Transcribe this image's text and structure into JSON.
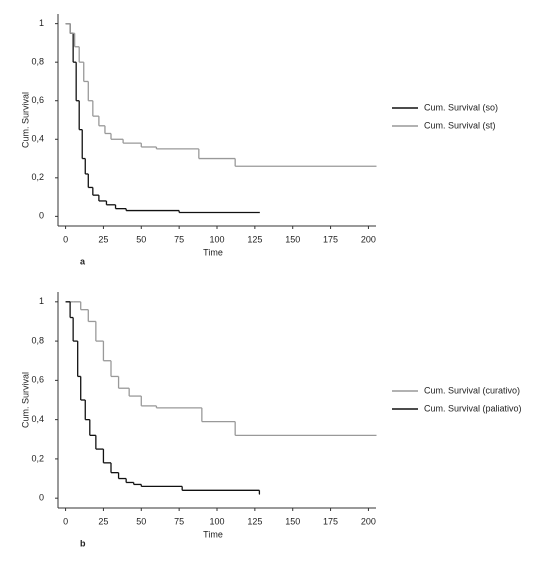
{
  "chart_data": [
    {
      "type": "line",
      "step": true,
      "panel_label": "a",
      "xlabel": "Time",
      "ylabel": "Cum. Survival",
      "xlim": [
        -5,
        205
      ],
      "xticks": [
        0,
        25,
        50,
        75,
        100,
        125,
        150,
        175,
        200
      ],
      "ylim": [
        -0.05,
        1.05
      ],
      "yticks": [
        0,
        {
          "value": 0.2,
          "label": "0,2"
        },
        {
          "value": 0.4,
          "label": "0,4"
        },
        {
          "value": 0.6,
          "label": "0,6"
        },
        {
          "value": 0.8,
          "label": "0,8"
        },
        1
      ],
      "series": [
        {
          "name": "Cum. Survival (so)",
          "color": "#111111",
          "x": [
            0,
            3,
            5,
            7,
            9,
            11,
            13,
            15,
            18,
            22,
            27,
            33,
            40,
            75,
            128
          ],
          "values": [
            1,
            0.95,
            0.8,
            0.6,
            0.45,
            0.3,
            0.22,
            0.15,
            0.11,
            0.08,
            0.06,
            0.04,
            0.03,
            0.02,
            0.02
          ]
        },
        {
          "name": "Cum. Survival (st)",
          "color": "#999999",
          "x": [
            0,
            3,
            6,
            9,
            12,
            15,
            18,
            22,
            26,
            30,
            38,
            50,
            60,
            88,
            112,
            205
          ],
          "values": [
            1,
            0.95,
            0.88,
            0.8,
            0.7,
            0.6,
            0.52,
            0.47,
            0.43,
            0.4,
            0.38,
            0.36,
            0.35,
            0.3,
            0.26,
            0.26
          ]
        }
      ]
    },
    {
      "type": "line",
      "step": true,
      "panel_label": "b",
      "xlabel": "Time",
      "ylabel": "Cum. Survival",
      "xlim": [
        -5,
        205
      ],
      "xticks": [
        0,
        25,
        50,
        75,
        100,
        125,
        150,
        175,
        200
      ],
      "ylim": [
        -0.05,
        1.05
      ],
      "yticks": [
        0,
        {
          "value": 0.2,
          "label": "0,2"
        },
        {
          "value": 0.4,
          "label": "0,4"
        },
        {
          "value": 0.6,
          "label": "0,6"
        },
        {
          "value": 0.8,
          "label": "0,8"
        },
        1
      ],
      "series": [
        {
          "name": "Cum. Survival (curativo)",
          "color": "#999999",
          "x": [
            0,
            5,
            10,
            15,
            20,
            25,
            30,
            35,
            42,
            50,
            60,
            90,
            112,
            205
          ],
          "values": [
            1,
            1,
            0.96,
            0.9,
            0.8,
            0.7,
            0.62,
            0.56,
            0.52,
            0.47,
            0.46,
            0.39,
            0.32,
            0.32
          ]
        },
        {
          "name": "Cum. Survival (paliativo)",
          "color": "#111111",
          "x": [
            0,
            3,
            5,
            8,
            10,
            13,
            16,
            20,
            25,
            30,
            35,
            40,
            45,
            50,
            77,
            128
          ],
          "values": [
            1,
            0.92,
            0.8,
            0.62,
            0.5,
            0.4,
            0.32,
            0.25,
            0.18,
            0.13,
            0.1,
            0.08,
            0.07,
            0.06,
            0.04,
            0.02
          ]
        }
      ]
    }
  ]
}
